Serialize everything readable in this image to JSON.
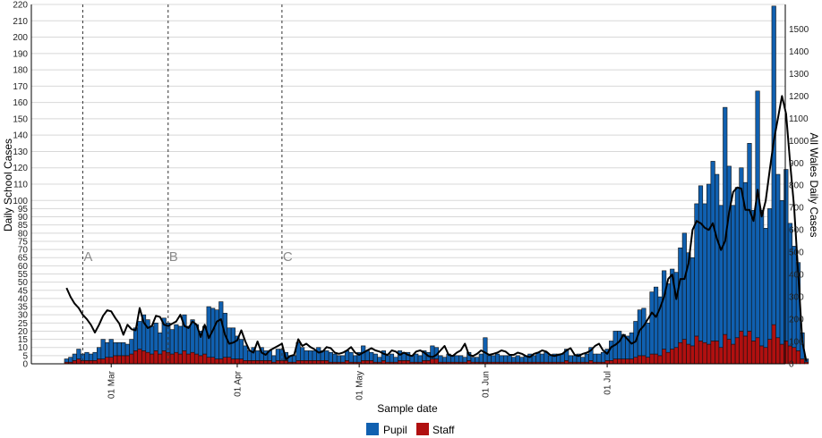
{
  "chart_data": {
    "type": "bar",
    "stacked": true,
    "title": "",
    "xlabel": "Sample date",
    "ylabel": "Daily School Cases",
    "y2label": "All Wales Daily Cases",
    "ylim": [
      0,
      220
    ],
    "y2lim": [
      0,
      1610
    ],
    "yticks": [
      0,
      5,
      10,
      15,
      20,
      25,
      30,
      35,
      40,
      45,
      50,
      55,
      60,
      65,
      70,
      75,
      80,
      85,
      90,
      95,
      100,
      110,
      120,
      130,
      140,
      150,
      160,
      170,
      180,
      190,
      200,
      210,
      220
    ],
    "y2ticks": [
      0,
      100,
      200,
      300,
      400,
      500,
      600,
      700,
      800,
      900,
      1000,
      1100,
      1200,
      1300,
      1400,
      1500
    ],
    "grid": true,
    "legend_position": "bottom",
    "x_start": "2021-02-18",
    "x_ticks": [
      {
        "label": "01 Mar",
        "date": "2021-03-01"
      },
      {
        "label": "01 Apr",
        "date": "2021-04-01"
      },
      {
        "label": "01 May",
        "date": "2021-05-01"
      },
      {
        "label": "01 Jun",
        "date": "2021-06-01"
      },
      {
        "label": "01 Jul",
        "date": "2021-07-01"
      }
    ],
    "annotations": [
      {
        "label": "A",
        "date": "2021-02-22"
      },
      {
        "label": "B",
        "date": "2021-03-15"
      },
      {
        "label": "C",
        "date": "2021-04-12"
      }
    ],
    "series": [
      {
        "name": "Pupil",
        "color": "#1060b0",
        "values": [
          2,
          3,
          4,
          6,
          4,
          5,
          4,
          5,
          7,
          12,
          9,
          11,
          8,
          8,
          8,
          7,
          9,
          14,
          17,
          22,
          20,
          17,
          17,
          13,
          20,
          18,
          15,
          17,
          17,
          22,
          17,
          20,
          18,
          15,
          17,
          31,
          30,
          30,
          35,
          27,
          18,
          19,
          14,
          12,
          9,
          6,
          8,
          6,
          8,
          6,
          6,
          4,
          7,
          7,
          5,
          4,
          4,
          11,
          8,
          6,
          6,
          6,
          8,
          6,
          6,
          6,
          5,
          4,
          4,
          6,
          6,
          4,
          6,
          9,
          6,
          5,
          5,
          3,
          6,
          4,
          5,
          3,
          6,
          5,
          5,
          4,
          5,
          4,
          6,
          5,
          8,
          7,
          4,
          3,
          5,
          4,
          4,
          4,
          3,
          5,
          3,
          3,
          5,
          15,
          4,
          4,
          5,
          4,
          4,
          4,
          3,
          4,
          3,
          4,
          5,
          4,
          6,
          5,
          6,
          4,
          5,
          5,
          5,
          7,
          4,
          4,
          5,
          3,
          5,
          8,
          5,
          5,
          6,
          7,
          12,
          17,
          17,
          15,
          14,
          16,
          22,
          28,
          29,
          21,
          38,
          41,
          36,
          48,
          42,
          49,
          46,
          58,
          65,
          56,
          54,
          81,
          95,
          85,
          98,
          110,
          102,
          87,
          139,
          106,
          85,
          92,
          100,
          94,
          115,
          80,
          151,
          83,
          73,
          80,
          195,
          100,
          88,
          105,
          75,
          62,
          54,
          16,
          2
        ]
      },
      {
        "name": "Staff",
        "color": "#b01010",
        "values": [
          1,
          1,
          2,
          3,
          2,
          2,
          2,
          2,
          3,
          3,
          4,
          4,
          5,
          5,
          5,
          5,
          6,
          8,
          9,
          8,
          7,
          6,
          8,
          6,
          8,
          7,
          6,
          7,
          6,
          8,
          6,
          7,
          6,
          5,
          6,
          4,
          4,
          3,
          3,
          4,
          4,
          3,
          3,
          3,
          2,
          2,
          2,
          2,
          2,
          2,
          2,
          1,
          2,
          2,
          2,
          1,
          1,
          2,
          2,
          2,
          2,
          2,
          2,
          2,
          2,
          1,
          1,
          1,
          1,
          2,
          1,
          1,
          1,
          2,
          2,
          2,
          1,
          1,
          2,
          1,
          1,
          1,
          2,
          2,
          2,
          1,
          1,
          1,
          2,
          2,
          3,
          3,
          1,
          1,
          1,
          1,
          1,
          1,
          1,
          2,
          1,
          1,
          1,
          1,
          1,
          1,
          1,
          1,
          1,
          1,
          1,
          1,
          1,
          1,
          1,
          1,
          1,
          1,
          1,
          1,
          1,
          1,
          1,
          2,
          1,
          1,
          1,
          1,
          1,
          2,
          1,
          1,
          1,
          2,
          2,
          3,
          3,
          3,
          3,
          3,
          4,
          5,
          5,
          4,
          6,
          6,
          5,
          9,
          7,
          9,
          10,
          13,
          15,
          12,
          11,
          17,
          14,
          13,
          12,
          14,
          14,
          10,
          18,
          15,
          12,
          16,
          20,
          17,
          20,
          14,
          16,
          11,
          10,
          15,
          24,
          16,
          12,
          14,
          11,
          10,
          8,
          3,
          1
        ]
      },
      {
        "name": "All Wales Daily Cases",
        "axis": "right",
        "type": "line",
        "color": "#000000",
        "values": [
          340,
          300,
          270,
          250,
          220,
          200,
          175,
          140,
          175,
          215,
          240,
          235,
          205,
          180,
          130,
          175,
          155,
          150,
          250,
          185,
          160,
          170,
          215,
          210,
          175,
          170,
          180,
          190,
          220,
          170,
          160,
          190,
          175,
          120,
          175,
          115,
          150,
          190,
          200,
          130,
          90,
          95,
          105,
          150,
          100,
          60,
          50,
          100,
          50,
          40,
          60,
          70,
          80,
          90,
          20,
          35,
          40,
          110,
          80,
          90,
          75,
          65,
          50,
          55,
          75,
          70,
          50,
          45,
          50,
          60,
          75,
          50,
          40,
          50,
          60,
          70,
          60,
          55,
          45,
          40,
          60,
          55,
          40,
          50,
          40,
          35,
          55,
          60,
          50,
          35,
          30,
          40,
          60,
          80,
          40,
          35,
          50,
          60,
          90,
          40,
          35,
          45,
          60,
          50,
          40,
          45,
          50,
          60,
          55,
          40,
          40,
          50,
          45,
          35,
          30,
          45,
          50,
          60,
          55,
          40,
          35,
          40,
          45,
          60,
          70,
          40,
          35,
          45,
          50,
          60,
          80,
          90,
          60,
          45,
          75,
          85,
          100,
          130,
          110,
          90,
          100,
          150,
          170,
          200,
          230,
          210,
          250,
          300,
          380,
          400,
          290,
          380,
          380,
          450,
          600,
          640,
          630,
          610,
          600,
          630,
          560,
          510,
          550,
          680,
          770,
          790,
          785,
          690,
          690,
          640,
          780,
          660,
          730,
          870,
          1000,
          1100,
          1200,
          1120,
          900,
          700,
          400,
          100,
          10
        ]
      }
    ]
  },
  "legend": [
    {
      "label": "Pupil",
      "color": "#1060b0"
    },
    {
      "label": "Staff",
      "color": "#b01010"
    }
  ]
}
